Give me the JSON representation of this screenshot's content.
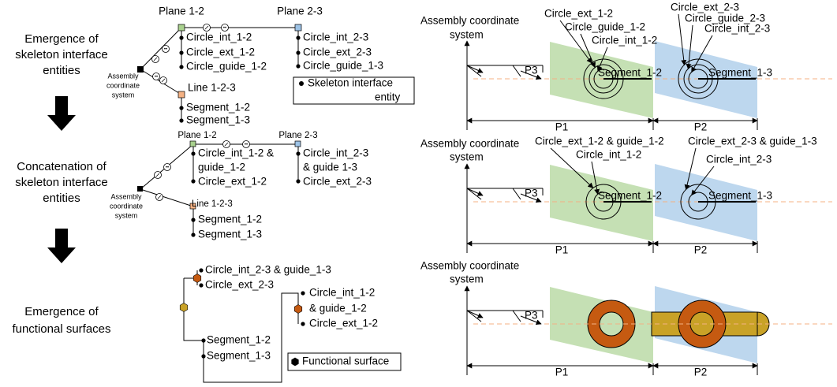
{
  "stages": [
    {
      "lines": [
        "Emergence of",
        "skeleton interface",
        "entities"
      ]
    },
    {
      "lines": [
        "Concatenation of",
        "skeleton interface",
        "entities"
      ]
    },
    {
      "lines": [
        "Emergence of",
        "functional surfaces"
      ]
    }
  ],
  "tree1": {
    "root": [
      "Assembly",
      "coordinate",
      "system"
    ],
    "plane_a": "Plane 1-2",
    "plane_b": "Plane 2-3",
    "line": "Line 1-2-3",
    "a_items": [
      "Circle_int_1-2",
      "Circle_ext_1-2",
      "Circle_guide_1-2"
    ],
    "b_items": [
      "Circle_int_2-3",
      "Circle_ext_2-3",
      "Circle_guide_1-3"
    ],
    "line_items": [
      "Segment_1-2",
      "Segment_1-3"
    ],
    "legend": [
      "Skeleton interface",
      "entity"
    ]
  },
  "tree2": {
    "root": [
      "Assembly",
      "coordinate",
      "system"
    ],
    "plane_a": "Plane 1-2",
    "plane_b": "Plane 2-3",
    "line": "Line 1-2-3",
    "a_items": [
      "Circle_int_1-2 &",
      "guide_1-2",
      "Circle_ext_1-2"
    ],
    "b_items": [
      "Circle_int_2-3",
      "& guide 1-3",
      "Circle_ext_2-3"
    ],
    "line_items": [
      "Segment_1-2",
      "Segment_1-3"
    ]
  },
  "tree3": {
    "upper": [
      "Circle_int_2-3 & guide_1-3",
      "Circle_ext_2-3"
    ],
    "right": [
      "Circle_int_1-2",
      "& guide_1-2",
      "Circle_ext_1-2"
    ],
    "lower": [
      "Segment_1-2",
      "Segment_1-3"
    ],
    "legend": "Functional surface"
  },
  "panels": [
    {
      "title": [
        "Assembly coordinate",
        "system"
      ],
      "left_labels": [
        "Circle_ext_1-2",
        "Circle_guide_1-2",
        "Circle_int_1-2"
      ],
      "right_labels": [
        "Circle_ext_2-3",
        "Circle_guide_2-3",
        "Circle_int_2-3"
      ],
      "segments": [
        "Segment_1-2",
        "Segment_1-3"
      ],
      "p3": "P3",
      "p1": "P1",
      "p2": "P2"
    },
    {
      "title": [
        "Assembly coordinate",
        "system"
      ],
      "left_labels": [
        "Circle_ext_1-2 & guide_1-2",
        "Circle_int_1-2"
      ],
      "right_labels": [
        "Circle_ext_2-3 & guide_1-3",
        "Circle_int_2-3"
      ],
      "segments": [
        "Segment_1-2",
        "Segment_1-3"
      ],
      "p3": "P3",
      "p1": "P1",
      "p2": "P2"
    },
    {
      "title": [
        "Assembly coordinate",
        "system"
      ],
      "p3": "P3",
      "p1": "P1",
      "p2": "P2"
    }
  ]
}
